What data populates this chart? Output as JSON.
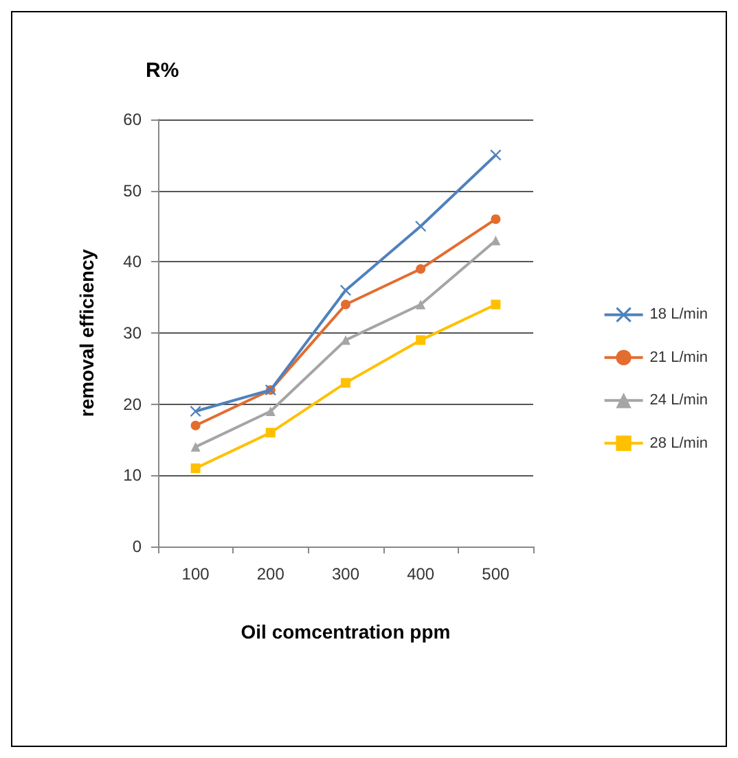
{
  "chart_data": {
    "type": "line",
    "title": "R%",
    "xlabel": "Oil comcentration ppm",
    "ylabel": "removal efficiency",
    "categories": [
      "100",
      "200",
      "300",
      "400",
      "500"
    ],
    "series": [
      {
        "name": "18 L/min",
        "color": "#4f81bd",
        "marker": "cross",
        "values": [
          19,
          22,
          36,
          45,
          55
        ]
      },
      {
        "name": "21 L/min",
        "color": "#e36c2f",
        "marker": "circle",
        "values": [
          17,
          22,
          34,
          39,
          46
        ]
      },
      {
        "name": "24 L/min",
        "color": "#a5a5a5",
        "marker": "triangle",
        "values": [
          14,
          19,
          29,
          34,
          43
        ]
      },
      {
        "name": "28 L/min",
        "color": "#ffc000",
        "marker": "square",
        "values": [
          11,
          16,
          23,
          29,
          34
        ]
      }
    ],
    "ylim": [
      0,
      60
    ],
    "yticks": [
      0,
      10,
      20,
      30,
      40,
      50,
      60
    ],
    "grid": "y",
    "legend": "right"
  }
}
